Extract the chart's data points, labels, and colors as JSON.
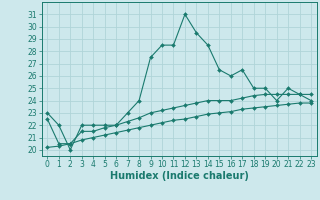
{
  "xlabel": "Humidex (Indice chaleur)",
  "x": [
    0,
    1,
    2,
    3,
    4,
    5,
    6,
    7,
    8,
    9,
    10,
    11,
    12,
    13,
    14,
    15,
    16,
    17,
    18,
    19,
    20,
    21,
    22,
    23
  ],
  "main_line": [
    23,
    22,
    20,
    22,
    22,
    22,
    22,
    23,
    24,
    27.5,
    28.5,
    28.5,
    31,
    29.5,
    28.5,
    26.5,
    26,
    26.5,
    25,
    25,
    24,
    25,
    24.5,
    24
  ],
  "line2": [
    22.5,
    20.5,
    20.5,
    21.5,
    21.5,
    21.8,
    22,
    22.3,
    22.6,
    23,
    23.2,
    23.4,
    23.6,
    23.8,
    24,
    24,
    24,
    24.2,
    24.4,
    24.5,
    24.5,
    24.5,
    24.5,
    24.5
  ],
  "line3": [
    20.2,
    20.3,
    20.5,
    20.8,
    21.0,
    21.2,
    21.4,
    21.6,
    21.8,
    22.0,
    22.2,
    22.4,
    22.5,
    22.7,
    22.9,
    23.0,
    23.1,
    23.3,
    23.4,
    23.5,
    23.6,
    23.7,
    23.8,
    23.8
  ],
  "bg_color": "#cde8ec",
  "grid_color": "#b0d4d8",
  "line_color": "#1a7a6e",
  "ylim": [
    19.5,
    32
  ],
  "yticks": [
    20,
    21,
    22,
    23,
    24,
    25,
    26,
    27,
    28,
    29,
    30,
    31
  ],
  "tick_fontsize": 5.5,
  "label_fontsize": 7.0
}
